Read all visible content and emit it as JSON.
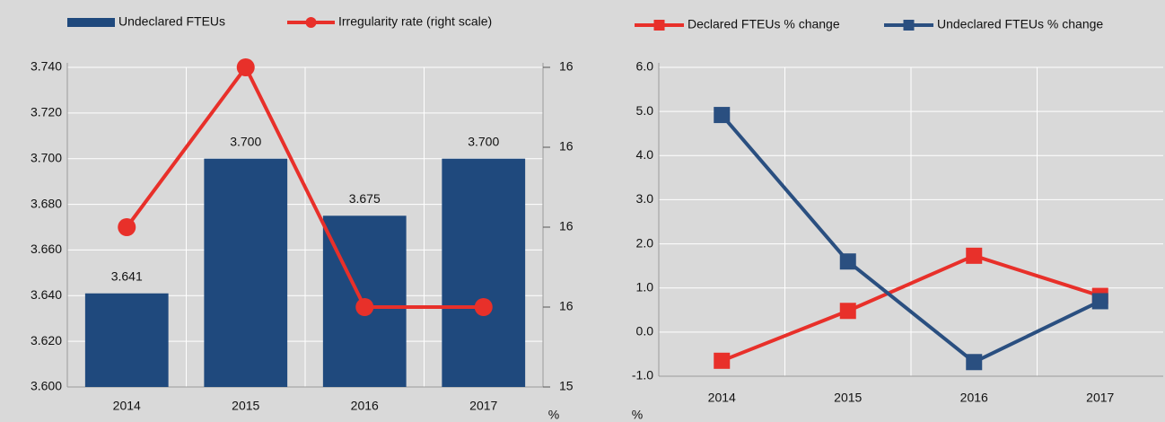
{
  "chart_data": [
    {
      "type": "combo",
      "categories": [
        "2014",
        "2015",
        "2016",
        "2017"
      ],
      "series": [
        {
          "name": "Undeclared FTEUs",
          "type": "bar",
          "color": "#1f497d",
          "values": [
            3.641,
            3.7,
            3.675,
            3.7
          ],
          "value_labels": [
            "3.641",
            "3.700",
            "3.675",
            "3.700"
          ]
        },
        {
          "name": "Irregularity rate (right scale)",
          "type": "line",
          "axis": "y2",
          "color": "#e8302a",
          "values": [
            15.8,
            16.2,
            15.6,
            15.6
          ]
        }
      ],
      "ylim": [
        3.6,
        3.74
      ],
      "yticks": [
        {
          "value": 3.6,
          "label": "3.600"
        },
        {
          "value": 3.62,
          "label": "3.620"
        },
        {
          "value": 3.64,
          "label": "3.640"
        },
        {
          "value": 3.66,
          "label": "3.660"
        },
        {
          "value": 3.68,
          "label": "3.680"
        },
        {
          "value": 3.7,
          "label": "3.700"
        },
        {
          "value": 3.72,
          "label": "3.720"
        },
        {
          "value": 3.74,
          "label": "3.740"
        }
      ],
      "y2lim": [
        15.4,
        16.2
      ],
      "y2ticks": [
        {
          "value": 15.4,
          "label": "15"
        },
        {
          "value": 15.6,
          "label": "16"
        },
        {
          "value": 15.8,
          "label": "16"
        },
        {
          "value": 16.0,
          "label": "16"
        },
        {
          "value": 16.2,
          "label": "16"
        }
      ],
      "y2label": "%",
      "grid": true
    },
    {
      "type": "line",
      "categories": [
        "2014",
        "2015",
        "2016",
        "2017"
      ],
      "series": [
        {
          "name": "Declared FTEUs % change",
          "color": "#e8302a",
          "marker": "square",
          "values": [
            -0.65,
            0.48,
            1.73,
            0.82
          ]
        },
        {
          "name": "Undeclared FTEUs % change",
          "color": "#2a4f80",
          "marker": "square",
          "values": [
            4.92,
            1.6,
            -0.68,
            0.7
          ]
        }
      ],
      "ylim": [
        -1,
        6
      ],
      "yticks": [
        {
          "value": -1,
          "label": "-1.0"
        },
        {
          "value": 0,
          "label": "0.0"
        },
        {
          "value": 1,
          "label": "1.0"
        },
        {
          "value": 2,
          "label": "2.0"
        },
        {
          "value": 3,
          "label": "3.0"
        },
        {
          "value": 4,
          "label": "4.0"
        },
        {
          "value": 5,
          "label": "5.0"
        },
        {
          "value": 6,
          "label": "6.0"
        }
      ],
      "ylabel": "%",
      "grid": true
    }
  ]
}
